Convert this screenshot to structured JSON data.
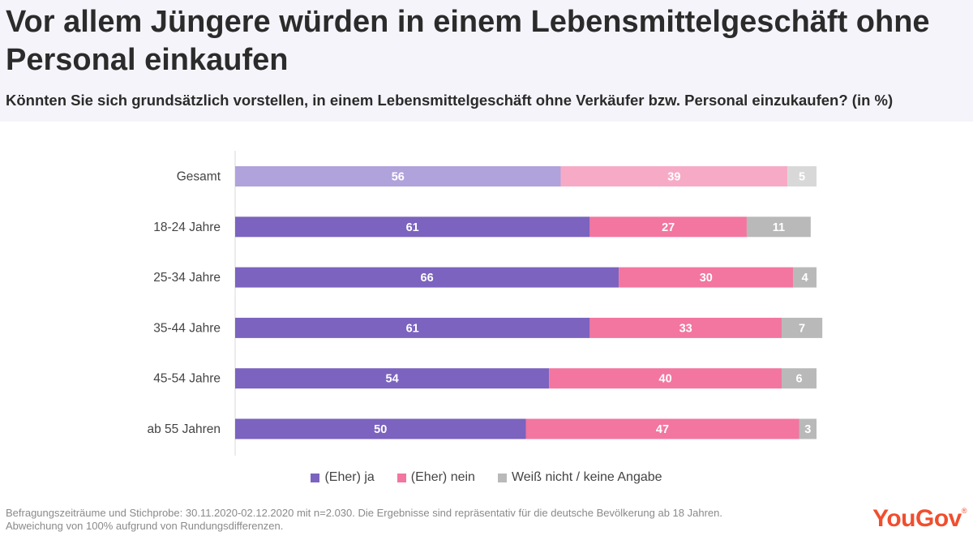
{
  "header": {
    "title": "Vor allem Jüngere würden in einem Lebensmittelgeschäft ohne Personal einkaufen",
    "subtitle": "Könnten Sie sich grundsätzlich vorstellen, in einem Lebensmittelgeschäft ohne Verkäufer bzw. Personal einzukaufen? (in %)"
  },
  "chart_data": {
    "type": "bar",
    "orientation": "horizontal",
    "stacked": true,
    "title": "Vor allem Jüngere würden in einem Lebensmittelgeschäft ohne Personal einkaufen",
    "subtitle": "Könnten Sie sich grundsätzlich vorstellen, in einem Lebensmittelgeschäft ohne Verkäufer bzw. Personal einzukaufen? (in %)",
    "categories": [
      "Gesamt",
      "18-24 Jahre",
      "25-34 Jahre",
      "35-44 Jahre",
      "45-54 Jahre",
      "ab 55 Jahren"
    ],
    "series": [
      {
        "name": "(Eher) ja",
        "values": [
          56,
          61,
          66,
          61,
          54,
          50
        ],
        "color": "#7b63bf",
        "highlight_color": "#b0a2db"
      },
      {
        "name": "(Eher) nein",
        "values": [
          39,
          27,
          30,
          33,
          40,
          47
        ],
        "color": "#f276a0",
        "highlight_color": "#f7aac6"
      },
      {
        "name": "Weiß nicht / keine Angabe",
        "values": [
          5,
          11,
          4,
          7,
          6,
          3
        ],
        "color": "#b9b9b9",
        "highlight_color": "#d8d8d8"
      }
    ],
    "highlighted_category": "Gesamt",
    "xlabel": "",
    "ylabel": "",
    "xlim": [
      0,
      100
    ],
    "legend_position": "bottom"
  },
  "legend": {
    "items": [
      {
        "label": "(Eher) ja",
        "color": "#7b63bf"
      },
      {
        "label": "(Eher) nein",
        "color": "#f276a0"
      },
      {
        "label": "Weiß nicht / keine Angabe",
        "color": "#b9b9b9"
      }
    ]
  },
  "footnote": {
    "line1": "Befragungszeiträume und Stichprobe: 30.11.2020-02.12.2020 mit n=2.030.  Die Ergebnisse sind repräsentativ für die deutsche Bevölkerung ab 18 Jahren.",
    "line2": "Abweichung von 100% aufgrund von Rundungsdifferenzen."
  },
  "brand": {
    "name": "YouGov",
    "mark": "®",
    "color": "#f04e2e"
  }
}
